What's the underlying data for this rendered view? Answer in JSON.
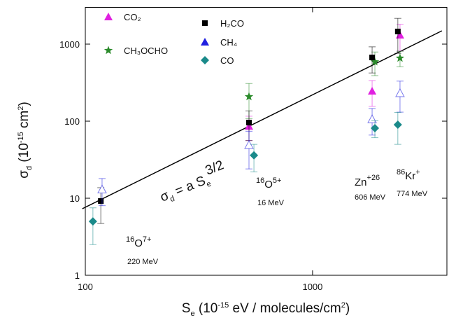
{
  "chart_data": {
    "type": "scatter",
    "x_label": [
      "S",
      "e",
      " (10",
      "-15",
      " eV / molecules/cm",
      "2",
      ")"
    ],
    "y_label": [
      "σ",
      "d",
      " (10",
      "-15",
      " cm",
      "2",
      ")"
    ],
    "xscale": "log",
    "yscale": "log",
    "xlim": [
      100,
      3900
    ],
    "ylim": [
      1,
      3000
    ],
    "xticks": [
      100,
      1000
    ],
    "yticks": [
      1,
      10,
      100,
      1000
    ],
    "series": [
      {
        "name": "CO₂",
        "color": "#e020e0",
        "marker": "triangle",
        "x": [
          525,
          1828,
          2425
        ],
        "values": [
          86,
          246,
          1313
        ],
        "errors": [
          30,
          90,
          500
        ]
      },
      {
        "name": "CH₃OCHO",
        "color": "#2a8a2a",
        "marker": "star",
        "x": [
          525,
          1880,
          2425
        ],
        "values": [
          208,
          590,
          658
        ],
        "errors": [
          100,
          200,
          150
        ]
      },
      {
        "name": "H₂CO",
        "color": "#000000",
        "marker": "square",
        "x": [
          117,
          525,
          1828,
          2372
        ],
        "values": [
          9.2,
          96,
          672,
          1459
        ],
        "errors": [
          4.5,
          40,
          250,
          700
        ]
      },
      {
        "name": "CH₄",
        "color": "#2020e0",
        "marker": "open-triangle",
        "x": [
          118.5,
          525,
          1828,
          2425
        ],
        "values": [
          13,
          49,
          106,
          231
        ],
        "errors": [
          5,
          25,
          40,
          100
        ]
      },
      {
        "name": "CO",
        "color": "#1a8a8a",
        "marker": "diamond",
        "x": [
          108,
          552,
          1880,
          2372
        ],
        "values": [
          5,
          36,
          81,
          90
        ],
        "errors": [
          2.5,
          14,
          20,
          40
        ]
      }
    ],
    "fit": {
      "label": [
        "σ",
        "d",
        " = a S",
        "e",
        "3/2"
      ],
      "x": [
        97,
        3707
      ],
      "values": [
        7.3,
        1489
      ]
    },
    "annotations": [
      {
        "parts": [
          "16",
          "O",
          "7+"
        ],
        "energy": "220 MeV"
      },
      {
        "parts": [
          "16",
          "O",
          "5+"
        ],
        "energy": "16 MeV"
      },
      {
        "parts": [
          "Zn",
          "+26"
        ],
        "energy": "606 MeV"
      },
      {
        "parts": [
          "86",
          "Kr",
          "+"
        ],
        "energy": "774 MeV"
      }
    ]
  }
}
